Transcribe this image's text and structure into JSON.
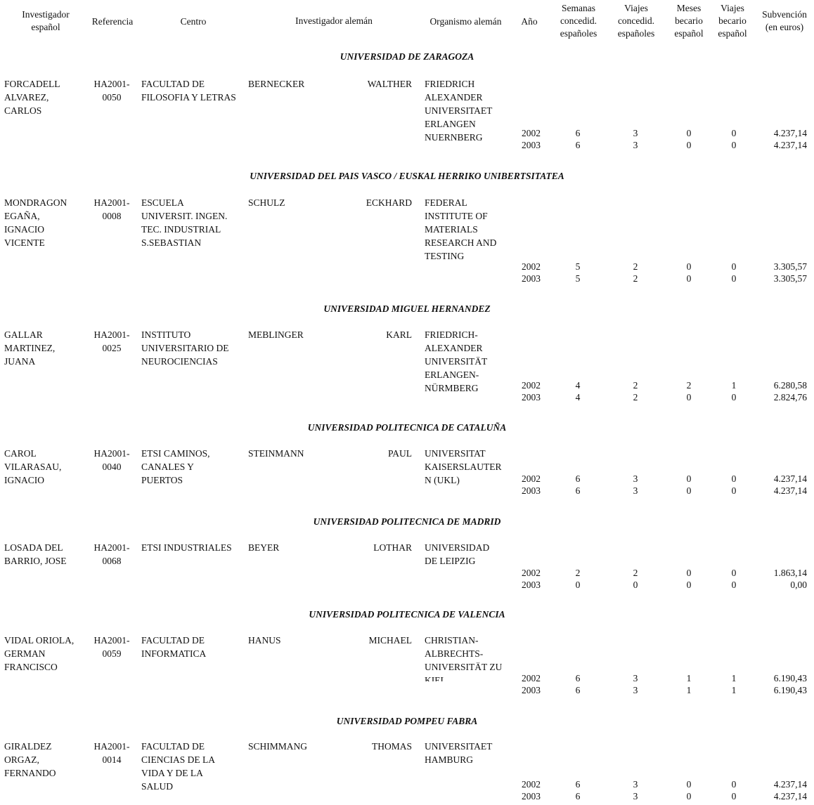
{
  "headers": {
    "investigador_espanol": "Investigador\nespañol",
    "referencia": "Referencia",
    "centro": "Centro",
    "investigador_aleman": "Investigador alemán",
    "organismo_aleman": "Organismo alemán",
    "anio": "Año",
    "semanas": "Semanas\nconcedid.\nespañoles",
    "viajes_concedid": "Viajes\nconcedid.\nespañoles",
    "meses_becario": "Meses\nbecario\nespañol",
    "viajes_becario": "Viajes\nbecario\nespañol",
    "subvencion": "Subvención\n(en euros)"
  },
  "groups": [
    {
      "university": "UNIVERSIDAD DE ZARAGOZA",
      "investigador": "FORCADELL\nALVAREZ,\nCARLOS",
      "referencia": "HA2001-\n0050",
      "centro": "FACULTAD DE\nFILOSOFIA Y LETRAS",
      "apellido_aleman": "BERNECKER",
      "nombre_aleman": "WALTHER",
      "organismo": "FRIEDRICH\nALEXANDER\nUNIVERSITAET\nERLANGEN\nNUERNBERG",
      "rows": [
        {
          "anio": "2002",
          "semanas": "6",
          "viajes": "3",
          "meses": "0",
          "viajes_becario": "0",
          "subvencion": "4.237,14"
        },
        {
          "anio": "2003",
          "semanas": "6",
          "viajes": "3",
          "meses": "0",
          "viajes_becario": "0",
          "subvencion": "4.237,14"
        }
      ]
    },
    {
      "university": "UNIVERSIDAD DEL PAIS VASCO / EUSKAL HERRIKO UNIBERTSITATEA",
      "investigador": "MONDRAGON\nEGAÑA,\nIGNACIO\nVICENTE",
      "referencia": "HA2001-\n0008",
      "centro": "ESCUELA\nUNIVERSIT. INGEN.\nTEC. INDUSTRIAL\nS.SEBASTIAN",
      "apellido_aleman": "SCHULZ",
      "nombre_aleman": "ECKHARD",
      "organismo": "FEDERAL\nINSTITUTE OF\nMATERIALS\nRESEARCH AND\nTESTING",
      "rows": [
        {
          "anio": "2002",
          "semanas": "5",
          "viajes": "2",
          "meses": "0",
          "viajes_becario": "0",
          "subvencion": "3.305,57"
        },
        {
          "anio": "2003",
          "semanas": "5",
          "viajes": "2",
          "meses": "0",
          "viajes_becario": "0",
          "subvencion": "3.305,57"
        }
      ]
    },
    {
      "university": "UNIVERSIDAD MIGUEL HERNANDEZ",
      "investigador": "GALLAR\nMARTINEZ,\nJUANA",
      "referencia": "HA2001-\n0025",
      "centro": "INSTITUTO\nUNIVERSITARIO DE\nNEUROCIENCIAS",
      "apellido_aleman": "MEBLINGER",
      "nombre_aleman": "KARL",
      "organismo": "FRIEDRICH-\nALEXANDER\nUNIVERSITÄT\nERLANGEN-\nNÜRMBERG",
      "rows": [
        {
          "anio": "2002",
          "semanas": "4",
          "viajes": "2",
          "meses": "2",
          "viajes_becario": "1",
          "subvencion": "6.280,58"
        },
        {
          "anio": "2003",
          "semanas": "4",
          "viajes": "2",
          "meses": "0",
          "viajes_becario": "0",
          "subvencion": "2.824,76"
        }
      ]
    },
    {
      "university": "UNIVERSIDAD POLITECNICA DE CATALUÑA",
      "investigador": "CAROL\nVILARASAU,\nIGNACIO",
      "referencia": "HA2001-\n0040",
      "centro": "ETSI CAMINOS,\nCANALES Y\nPUERTOS",
      "apellido_aleman": "STEINMANN",
      "nombre_aleman": "PAUL",
      "organismo": "UNIVERSITAT\nKAISERSLAUTER\nN (UKL)",
      "rows": [
        {
          "anio": "2002",
          "semanas": "6",
          "viajes": "3",
          "meses": "0",
          "viajes_becario": "0",
          "subvencion": "4.237,14"
        },
        {
          "anio": "2003",
          "semanas": "6",
          "viajes": "3",
          "meses": "0",
          "viajes_becario": "0",
          "subvencion": "4.237,14"
        }
      ]
    },
    {
      "university": "UNIVERSIDAD POLITECNICA DE MADRID",
      "investigador": "LOSADA DEL\nBARRIO, JOSE",
      "referencia": "HA2001-\n0068",
      "centro": "ETSI INDUSTRIALES",
      "apellido_aleman": "BEYER",
      "nombre_aleman": "LOTHAR",
      "organismo": "UNIVERSIDAD\nDE LEIPZIG",
      "rows": [
        {
          "anio": "2002",
          "semanas": "2",
          "viajes": "2",
          "meses": "0",
          "viajes_becario": "0",
          "subvencion": "1.863,14"
        },
        {
          "anio": "2003",
          "semanas": "0",
          "viajes": "0",
          "meses": "0",
          "viajes_becario": "0",
          "subvencion": "0,00"
        }
      ]
    },
    {
      "university": "UNIVERSIDAD POLITECNICA DE VALENCIA",
      "investigador": "VIDAL ORIOLA,\nGERMAN\nFRANCISCO",
      "referencia": "HA2001-\n0059",
      "centro": "FACULTAD DE\nINFORMATICA",
      "apellido_aleman": "HANUS",
      "nombre_aleman": "MICHAEL",
      "organismo": "CHRISTIAN-\nALBRECHTS-\nUNIVERSITÄT ZU\nKIEL",
      "rows": [
        {
          "anio": "2002",
          "semanas": "6",
          "viajes": "3",
          "meses": "1",
          "viajes_becario": "1",
          "subvencion": "6.190,43"
        },
        {
          "anio": "2003",
          "semanas": "6",
          "viajes": "3",
          "meses": "1",
          "viajes_becario": "1",
          "subvencion": "6.190,43"
        }
      ]
    },
    {
      "university": "UNIVERSIDAD POMPEU FABRA",
      "investigador": "GIRALDEZ\nORGAZ,\nFERNANDO",
      "referencia": "HA2001-\n0014",
      "centro": "FACULTAD DE\nCIENCIAS DE LA\nVIDA Y DE LA\nSALUD",
      "apellido_aleman": "SCHIMMANG",
      "nombre_aleman": "THOMAS",
      "organismo": "UNIVERSITAET\nHAMBURG",
      "rows": [
        {
          "anio": "2002",
          "semanas": "6",
          "viajes": "3",
          "meses": "0",
          "viajes_becario": "0",
          "subvencion": "4.237,14"
        },
        {
          "anio": "2003",
          "semanas": "6",
          "viajes": "3",
          "meses": "0",
          "viajes_becario": "0",
          "subvencion": "4.237,14"
        }
      ]
    }
  ]
}
